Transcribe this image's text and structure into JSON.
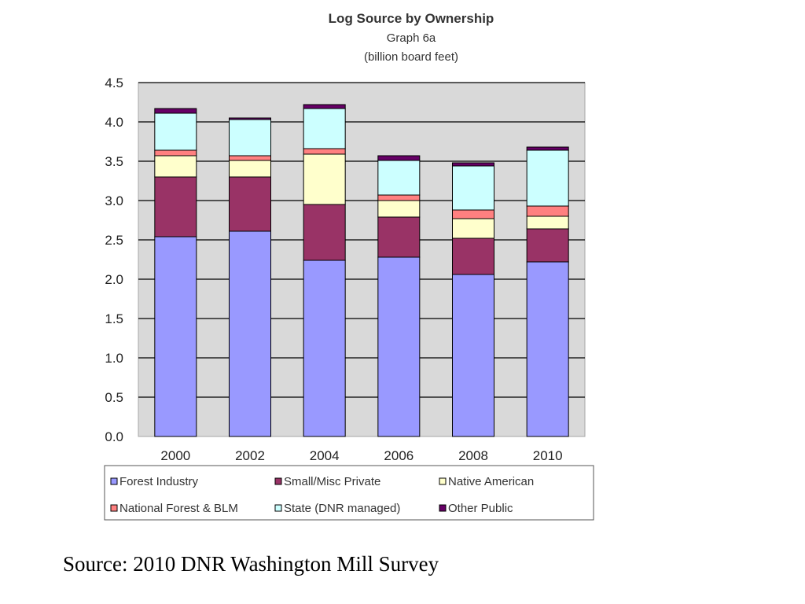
{
  "chart_data": {
    "type": "bar",
    "stacked": true,
    "title": "Log Source by Ownership",
    "subtitle_lines": [
      "Graph 6a",
      "(billion board feet)"
    ],
    "categories": [
      "2000",
      "2002",
      "2004",
      "2006",
      "2008",
      "2010"
    ],
    "yticks": [
      "0.0",
      "0.5",
      "1.0",
      "1.5",
      "2.0",
      "2.5",
      "3.0",
      "3.5",
      "4.0",
      "4.5"
    ],
    "ylim": [
      0,
      4.5
    ],
    "grid": true,
    "legend_position": "bottom",
    "series": [
      {
        "name": "Forest Industry",
        "color": "#9999ff",
        "values": [
          2.54,
          2.61,
          2.24,
          2.28,
          2.06,
          2.22
        ]
      },
      {
        "name": "Small/Misc Private",
        "color": "#993366",
        "values": [
          0.76,
          0.69,
          0.71,
          0.51,
          0.46,
          0.42
        ]
      },
      {
        "name": "Native American",
        "color": "#ffffcc",
        "values": [
          0.27,
          0.21,
          0.64,
          0.21,
          0.25,
          0.16
        ]
      },
      {
        "name": "National Forest & BLM",
        "color": "#ff8080",
        "values": [
          0.07,
          0.06,
          0.07,
          0.07,
          0.11,
          0.13
        ]
      },
      {
        "name": "State (DNR managed)",
        "color": "#ccffff",
        "values": [
          0.47,
          0.46,
          0.51,
          0.44,
          0.56,
          0.71
        ]
      },
      {
        "name": "Other Public",
        "color": "#660066",
        "values": [
          0.06,
          0.02,
          0.05,
          0.06,
          0.04,
          0.04
        ]
      }
    ]
  },
  "source_text": "Source: 2010 DNR Washington Mill Survey"
}
